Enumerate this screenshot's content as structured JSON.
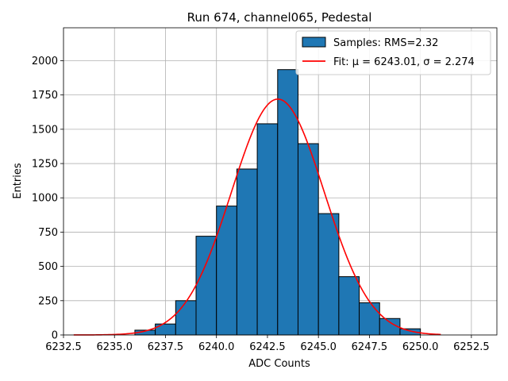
{
  "chart_data": {
    "type": "bar",
    "title": "Run 674, channel065, Pedestal",
    "xlabel": "ADC Counts",
    "ylabel": "Entries",
    "xlim": [
      6232.5,
      6253.75
    ],
    "ylim": [
      0,
      2240
    ],
    "grid": true,
    "legend_placement": "top-right",
    "x_ticks": [
      6232.5,
      6235.0,
      6237.5,
      6240.0,
      6242.5,
      6245.0,
      6247.5,
      6250.0,
      6252.5
    ],
    "x_tick_labels": [
      "6232.5",
      "6235.0",
      "6237.5",
      "6240.0",
      "6242.5",
      "6245.0",
      "6247.5",
      "6250.0",
      "6252.5"
    ],
    "y_ticks": [
      0,
      250,
      500,
      750,
      1000,
      1250,
      1500,
      1750,
      2000
    ],
    "y_tick_labels": [
      "0",
      "250",
      "500",
      "750",
      "1000",
      "1250",
      "1500",
      "1750",
      "2000"
    ],
    "histogram": {
      "name": "Samples: RMS=2.32",
      "color": "#1f77b4",
      "edgecolor": "#000000",
      "bins": [
        {
          "x0": 6236.0,
          "x1": 6237.0,
          "value": 35
        },
        {
          "x0": 6237.0,
          "x1": 6238.0,
          "value": 80
        },
        {
          "x0": 6238.0,
          "x1": 6239.0,
          "value": 250
        },
        {
          "x0": 6239.0,
          "x1": 6240.0,
          "value": 720
        },
        {
          "x0": 6240.0,
          "x1": 6241.0,
          "value": 940
        },
        {
          "x0": 6241.0,
          "x1": 6242.0,
          "value": 1210
        },
        {
          "x0": 6242.0,
          "x1": 6243.0,
          "value": 1540
        },
        {
          "x0": 6243.0,
          "x1": 6244.0,
          "value": 1935
        },
        {
          "x0": 6244.0,
          "x1": 6245.0,
          "value": 1395
        },
        {
          "x0": 6245.0,
          "x1": 6246.0,
          "value": 885
        },
        {
          "x0": 6246.0,
          "x1": 6247.0,
          "value": 425
        },
        {
          "x0": 6247.0,
          "x1": 6248.0,
          "value": 235
        },
        {
          "x0": 6248.0,
          "x1": 6249.0,
          "value": 120
        },
        {
          "x0": 6249.0,
          "x1": 6250.0,
          "value": 45
        }
      ]
    },
    "fit": {
      "name": "Fit: μ = 6243.01, σ = 2.274",
      "color": "#ff0000",
      "mu": 6243.01,
      "sigma": 2.274,
      "amplitude": 1720,
      "x_range": [
        6233.0,
        6251.0
      ]
    }
  }
}
